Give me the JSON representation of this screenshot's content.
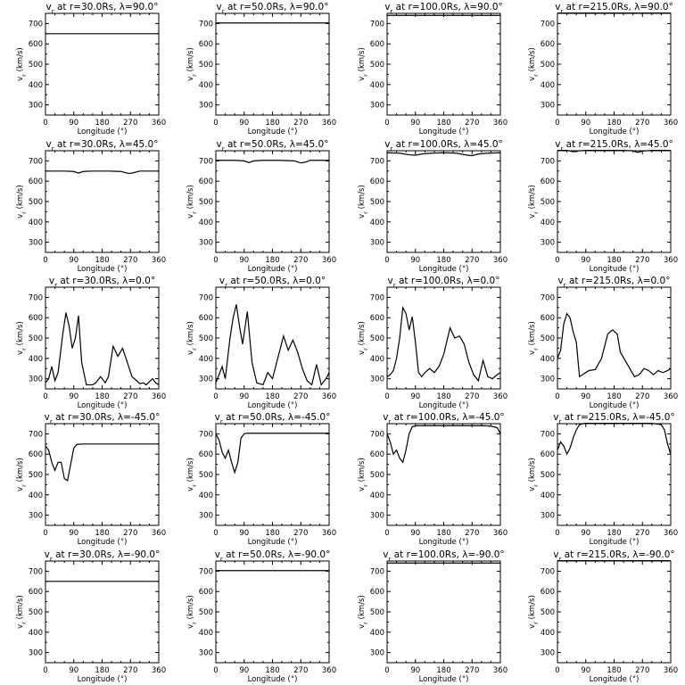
{
  "figure": {
    "xlabel": "Longitude (°)",
    "ylabel": "v",
    "ylabel_sub": "r",
    "ylabel_unit": "(km/s)"
  },
  "chart_data": [
    {
      "type": "line",
      "title": "v",
      "title_sub": "r",
      "title_rest": " at r=30.0Rs, λ=90.0°",
      "xlim": [
        0,
        360
      ],
      "ylim": [
        250,
        750
      ],
      "xticks": [
        0,
        90,
        180,
        270,
        360
      ],
      "yticks": [
        300,
        400,
        500,
        600,
        700
      ],
      "series": [
        {
          "x": [
            0,
            360
          ],
          "y": [
            650,
            650
          ]
        }
      ]
    },
    {
      "type": "line",
      "title": "v",
      "title_sub": "r",
      "title_rest": " at r=50.0Rs, λ=90.0°",
      "xlim": [
        0,
        360
      ],
      "ylim": [
        250,
        750
      ],
      "xticks": [
        0,
        90,
        180,
        270,
        360
      ],
      "yticks": [
        300,
        400,
        500,
        600,
        700
      ],
      "series": [
        {
          "x": [
            0,
            360
          ],
          "y": [
            703,
            703
          ]
        }
      ]
    },
    {
      "type": "line",
      "title": "v",
      "title_sub": "r",
      "title_rest": " at r=100.0Rs, λ=90.0°",
      "xlim": [
        0,
        360
      ],
      "ylim": [
        250,
        750
      ],
      "xticks": [
        0,
        90,
        180,
        270,
        360
      ],
      "yticks": [
        300,
        400,
        500,
        600,
        700
      ],
      "series": [
        {
          "x": [
            0,
            360
          ],
          "y": [
            740,
            740
          ]
        }
      ]
    },
    {
      "type": "line",
      "title": "v",
      "title_sub": "r",
      "title_rest": " at r=215.0Rs, λ=90.0°",
      "xlim": [
        0,
        360
      ],
      "ylim": [
        250,
        750
      ],
      "xticks": [
        0,
        90,
        180,
        270,
        360
      ],
      "yticks": [
        300,
        400,
        500,
        600,
        700
      ],
      "series": [
        {
          "x": [
            0,
            360
          ],
          "y": [
            752,
            752
          ]
        }
      ]
    },
    {
      "type": "line",
      "title": "v",
      "title_sub": "r",
      "title_rest": " at r=30.0Rs, λ=45.0°",
      "xlim": [
        0,
        360
      ],
      "ylim": [
        250,
        750
      ],
      "xticks": [
        0,
        90,
        180,
        270,
        360
      ],
      "yticks": [
        300,
        400,
        500,
        600,
        700
      ],
      "series": [
        {
          "x": [
            0,
            60,
            90,
            105,
            120,
            150,
            200,
            240,
            265,
            280,
            300,
            330,
            360
          ],
          "y": [
            650,
            650,
            648,
            640,
            648,
            650,
            650,
            648,
            638,
            642,
            650,
            650,
            650
          ]
        }
      ]
    },
    {
      "type": "line",
      "title": "v",
      "title_sub": "r",
      "title_rest": " at r=50.0Rs, λ=45.0°",
      "xlim": [
        0,
        360
      ],
      "ylim": [
        250,
        750
      ],
      "xticks": [
        0,
        90,
        180,
        270,
        360
      ],
      "yticks": [
        300,
        400,
        500,
        600,
        700
      ],
      "series": [
        {
          "x": [
            0,
            60,
            90,
            105,
            120,
            150,
            200,
            250,
            270,
            285,
            300,
            330,
            360
          ],
          "y": [
            703,
            703,
            700,
            692,
            700,
            703,
            703,
            700,
            690,
            694,
            703,
            703,
            703
          ]
        }
      ]
    },
    {
      "type": "line",
      "title": "v",
      "title_sub": "r",
      "title_rest": " at r=100.0Rs, λ=45.0°",
      "xlim": [
        0,
        360
      ],
      "ylim": [
        250,
        750
      ],
      "xticks": [
        0,
        90,
        180,
        270,
        360
      ],
      "yticks": [
        300,
        400,
        500,
        600,
        700
      ],
      "series": [
        {
          "x": [
            0,
            40,
            70,
            90,
            110,
            140,
            180,
            220,
            255,
            270,
            290,
            320,
            360
          ],
          "y": [
            740,
            738,
            730,
            728,
            734,
            738,
            740,
            738,
            728,
            726,
            734,
            738,
            740
          ]
        }
      ]
    },
    {
      "type": "line",
      "title": "v",
      "title_sub": "r",
      "title_rest": " at r=215.0Rs, λ=45.0°",
      "xlim": [
        0,
        360
      ],
      "ylim": [
        250,
        750
      ],
      "xticks": [
        0,
        90,
        180,
        270,
        360
      ],
      "yticks": [
        300,
        400,
        500,
        600,
        700
      ],
      "series": [
        {
          "x": [
            0,
            30,
            50,
            70,
            100,
            150,
            200,
            240,
            255,
            270,
            300,
            360
          ],
          "y": [
            752,
            752,
            745,
            750,
            752,
            752,
            752,
            750,
            742,
            748,
            752,
            752
          ]
        }
      ]
    },
    {
      "type": "line",
      "title": "v",
      "title_sub": "r",
      "title_rest": " at r=30.0Rs, λ=0.0°",
      "xlim": [
        0,
        360
      ],
      "ylim": [
        250,
        750
      ],
      "xticks": [
        0,
        90,
        180,
        270,
        360
      ],
      "yticks": [
        300,
        400,
        500,
        600,
        700
      ],
      "series": [
        {
          "x": [
            0,
            10,
            20,
            30,
            40,
            55,
            65,
            75,
            85,
            95,
            105,
            115,
            130,
            150,
            160,
            175,
            190,
            200,
            215,
            230,
            245,
            260,
            275,
            290,
            300,
            310,
            320,
            340,
            350,
            360
          ],
          "y": [
            280,
            300,
            360,
            290,
            330,
            520,
            625,
            560,
            450,
            500,
            610,
            380,
            270,
            270,
            280,
            310,
            280,
            310,
            460,
            410,
            450,
            380,
            310,
            290,
            275,
            280,
            270,
            300,
            280,
            270
          ]
        }
      ]
    },
    {
      "type": "line",
      "title": "v",
      "title_sub": "r",
      "title_rest": " at r=50.0Rs, λ=0.0°",
      "xlim": [
        0,
        360
      ],
      "ylim": [
        250,
        750
      ],
      "xticks": [
        0,
        90,
        180,
        270,
        360
      ],
      "yticks": [
        300,
        400,
        500,
        600,
        700
      ],
      "series": [
        {
          "x": [
            0,
            10,
            20,
            30,
            45,
            55,
            65,
            75,
            85,
            100,
            115,
            130,
            150,
            165,
            180,
            200,
            215,
            230,
            245,
            260,
            275,
            290,
            305,
            320,
            335,
            350,
            360
          ],
          "y": [
            280,
            320,
            360,
            300,
            500,
            600,
            665,
            560,
            470,
            630,
            380,
            280,
            270,
            330,
            300,
            420,
            510,
            440,
            490,
            430,
            350,
            290,
            270,
            370,
            270,
            300,
            330
          ]
        }
      ]
    },
    {
      "type": "line",
      "title": "v",
      "title_sub": "r",
      "title_rest": " at r=100.0Rs, λ=0.0°",
      "xlim": [
        0,
        360
      ],
      "ylim": [
        250,
        750
      ],
      "xticks": [
        0,
        90,
        180,
        270,
        360
      ],
      "yticks": [
        300,
        400,
        500,
        600,
        700
      ],
      "series": [
        {
          "x": [
            0,
            10,
            20,
            30,
            40,
            50,
            60,
            70,
            80,
            90,
            100,
            110,
            120,
            135,
            150,
            165,
            180,
            200,
            215,
            230,
            245,
            260,
            275,
            290,
            305,
            320,
            335,
            350,
            360
          ],
          "y": [
            310,
            320,
            340,
            400,
            500,
            650,
            620,
            540,
            605,
            480,
            330,
            310,
            330,
            350,
            330,
            360,
            420,
            550,
            500,
            510,
            470,
            380,
            320,
            290,
            390,
            310,
            300,
            320,
            330
          ]
        }
      ]
    },
    {
      "type": "line",
      "title": "v",
      "title_sub": "r",
      "title_rest": " at r=215.0Rs, λ=0.0°",
      "xlim": [
        0,
        360
      ],
      "ylim": [
        250,
        750
      ],
      "xticks": [
        0,
        90,
        180,
        270,
        360
      ],
      "yticks": [
        300,
        400,
        500,
        600,
        700
      ],
      "series": [
        {
          "x": [
            0,
            10,
            20,
            30,
            40,
            50,
            60,
            70,
            80,
            90,
            100,
            120,
            140,
            160,
            175,
            190,
            200,
            215,
            230,
            245,
            260,
            275,
            290,
            305,
            320,
            335,
            350,
            360
          ],
          "y": [
            400,
            440,
            570,
            620,
            600,
            530,
            480,
            310,
            320,
            330,
            340,
            345,
            400,
            520,
            540,
            520,
            430,
            390,
            350,
            310,
            320,
            350,
            340,
            320,
            340,
            330,
            340,
            350
          ]
        }
      ]
    },
    {
      "type": "line",
      "title": "v",
      "title_sub": "r",
      "title_rest": " at r=30.0Rs, λ=-45.0°",
      "xlim": [
        0,
        360
      ],
      "ylim": [
        250,
        750
      ],
      "xticks": [
        0,
        90,
        180,
        270,
        360
      ],
      "yticks": [
        300,
        400,
        500,
        600,
        700
      ],
      "series": [
        {
          "x": [
            0,
            10,
            20,
            30,
            40,
            50,
            60,
            70,
            80,
            90,
            100,
            120,
            150,
            200,
            250,
            300,
            360
          ],
          "y": [
            640,
            620,
            560,
            520,
            560,
            560,
            480,
            470,
            550,
            630,
            648,
            650,
            650,
            650,
            650,
            650,
            650
          ]
        }
      ]
    },
    {
      "type": "line",
      "title": "v",
      "title_sub": "r",
      "title_rest": " at r=50.0Rs, λ=-45.0°",
      "xlim": [
        0,
        360
      ],
      "ylim": [
        250,
        750
      ],
      "xticks": [
        0,
        90,
        180,
        270,
        360
      ],
      "yticks": [
        300,
        400,
        500,
        600,
        700
      ],
      "series": [
        {
          "x": [
            0,
            10,
            20,
            30,
            40,
            50,
            60,
            70,
            80,
            90,
            100,
            150,
            200,
            250,
            300,
            360
          ],
          "y": [
            700,
            670,
            610,
            580,
            620,
            560,
            510,
            560,
            680,
            700,
            703,
            703,
            703,
            703,
            703,
            703
          ]
        }
      ]
    },
    {
      "type": "line",
      "title": "v",
      "title_sub": "r",
      "title_rest": " at r=100.0Rs, λ=-45.0°",
      "xlim": [
        0,
        360
      ],
      "ylim": [
        250,
        750
      ],
      "xticks": [
        0,
        90,
        180,
        270,
        360
      ],
      "yticks": [
        300,
        400,
        500,
        600,
        700
      ],
      "series": [
        {
          "x": [
            0,
            10,
            20,
            30,
            40,
            50,
            60,
            70,
            80,
            90,
            110,
            150,
            200,
            250,
            300,
            330,
            350,
            360
          ],
          "y": [
            700,
            660,
            600,
            620,
            580,
            560,
            620,
            700,
            735,
            740,
            740,
            740,
            740,
            740,
            740,
            738,
            730,
            700
          ]
        }
      ]
    },
    {
      "type": "line",
      "title": "v",
      "title_sub": "r",
      "title_rest": " at r=215.0Rs, λ=-45.0°",
      "xlim": [
        0,
        360
      ],
      "ylim": [
        250,
        750
      ],
      "xticks": [
        0,
        90,
        180,
        270,
        360
      ],
      "yticks": [
        300,
        400,
        500,
        600,
        700
      ],
      "series": [
        {
          "x": [
            0,
            10,
            20,
            30,
            40,
            50,
            60,
            70,
            80,
            90,
            120,
            180,
            240,
            300,
            330,
            340,
            350,
            360
          ],
          "y": [
            620,
            660,
            640,
            600,
            630,
            680,
            720,
            745,
            750,
            752,
            752,
            752,
            752,
            752,
            745,
            720,
            650,
            600
          ]
        }
      ]
    },
    {
      "type": "line",
      "title": "v",
      "title_sub": "r",
      "title_rest": " at r=30.0Rs, λ=-90.0°",
      "xlim": [
        0,
        360
      ],
      "ylim": [
        250,
        750
      ],
      "xticks": [
        0,
        90,
        180,
        270,
        360
      ],
      "yticks": [
        300,
        400,
        500,
        600,
        700
      ],
      "series": [
        {
          "x": [
            0,
            360
          ],
          "y": [
            650,
            650
          ]
        }
      ]
    },
    {
      "type": "line",
      "title": "v",
      "title_sub": "r",
      "title_rest": " at r=50.0Rs, λ=-90.0°",
      "xlim": [
        0,
        360
      ],
      "ylim": [
        250,
        750
      ],
      "xticks": [
        0,
        90,
        180,
        270,
        360
      ],
      "yticks": [
        300,
        400,
        500,
        600,
        700
      ],
      "series": [
        {
          "x": [
            0,
            360
          ],
          "y": [
            703,
            703
          ]
        }
      ]
    },
    {
      "type": "line",
      "title": "v",
      "title_sub": "r",
      "title_rest": " at r=100.0Rs, λ=-90.0°",
      "xlim": [
        0,
        360
      ],
      "ylim": [
        250,
        750
      ],
      "xticks": [
        0,
        90,
        180,
        270,
        360
      ],
      "yticks": [
        300,
        400,
        500,
        600,
        700
      ],
      "series": [
        {
          "x": [
            0,
            360
          ],
          "y": [
            740,
            740
          ]
        }
      ]
    },
    {
      "type": "line",
      "title": "v",
      "title_sub": "r",
      "title_rest": " at r=215.0Rs, λ=-90.0°",
      "xlim": [
        0,
        360
      ],
      "ylim": [
        250,
        750
      ],
      "xticks": [
        0,
        90,
        180,
        270,
        360
      ],
      "yticks": [
        300,
        400,
        500,
        600,
        700
      ],
      "series": [
        {
          "x": [
            0,
            360
          ],
          "y": [
            752,
            752
          ]
        }
      ]
    }
  ]
}
